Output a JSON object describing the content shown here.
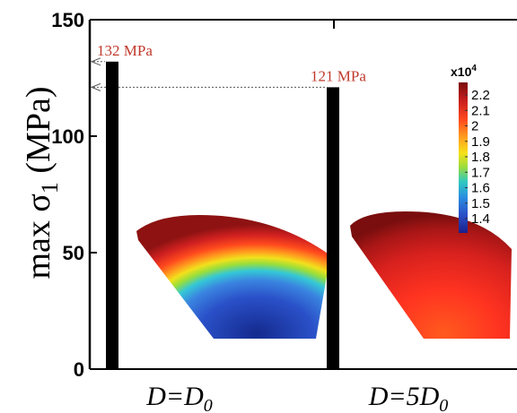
{
  "chart_data": {
    "type": "bar",
    "categories": [
      "D=D",
      "D=5D"
    ],
    "category_subscript": "0",
    "values": [
      132,
      121
    ],
    "ylim": [
      0,
      150
    ],
    "yticks": [
      0,
      50,
      100,
      150
    ],
    "ylabel": {
      "prefix": "max ",
      "symbol": "σ",
      "subscript": "1",
      "unit": " (MPa)"
    },
    "annotations": [
      {
        "text": "132 MPa",
        "value": 132
      },
      {
        "text": "121 MPa",
        "value": 121
      }
    ],
    "grid": false,
    "bar_color": "#000000",
    "annotation_color": "#c0392b",
    "colorbar": {
      "exponent_label": "x10",
      "exponent_power": "4",
      "ticks": [
        "2.2",
        "2.1",
        "2",
        "1.9",
        "1.8",
        "1.7",
        "1.6",
        "1.5",
        "1.4"
      ]
    }
  }
}
